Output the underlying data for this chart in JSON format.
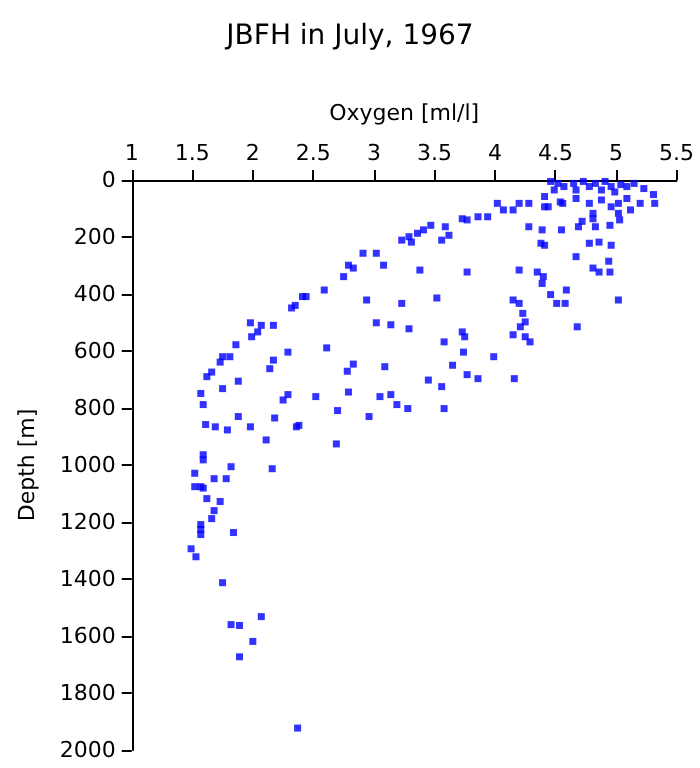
{
  "chart_data": {
    "type": "scatter",
    "title": "JBFH in July, 1967",
    "xlabel": "Oxygen [ml/l]",
    "ylabel": "Depth [m]",
    "xlim": [
      1,
      5.5
    ],
    "xticks": [
      1,
      1.5,
      2,
      2.5,
      3,
      3.5,
      4,
      4.5,
      5,
      5.5
    ],
    "ylim": [
      2000,
      0
    ],
    "yticks": [
      0,
      200,
      400,
      600,
      800,
      1000,
      1200,
      1400,
      1600,
      1800,
      2000
    ],
    "grid": false,
    "marker": "square",
    "series": [
      {
        "color": "#0000ff",
        "x": [
          4.46,
          4.52,
          4.57,
          4.65,
          4.73,
          4.78,
          4.83,
          4.91,
          4.96,
          5.04,
          5.09,
          5.15,
          4.49,
          4.67,
          4.88,
          4.99,
          5.23,
          5.31,
          5.32,
          5.2,
          5.09,
          5.12,
          5.02,
          4.88,
          4.78,
          4.67,
          4.56,
          4.41,
          4.44,
          4.28,
          4.2,
          4.15,
          4.07,
          4.02,
          3.94,
          3.86,
          3.77,
          3.73,
          3.59,
          3.47,
          3.41,
          3.36,
          3.29,
          3.23,
          3.31,
          3.56,
          3.62,
          2.91,
          3.02,
          3.08,
          2.79,
          2.83,
          2.75,
          2.59,
          2.44,
          2.41,
          2.35,
          2.32,
          3.77,
          3.38,
          2.94,
          3.23,
          3.52,
          4.15,
          4.2,
          4.23,
          4.2,
          4.35,
          4.4,
          4.39,
          4.46,
          4.51,
          4.58,
          4.59,
          5.02,
          4.28,
          4.39,
          4.55,
          4.69,
          4.72,
          4.83,
          4.95,
          4.38,
          4.41,
          4.78,
          4.86,
          4.96,
          4.67,
          4.81,
          4.86,
          4.95,
          4.94,
          4.41,
          4.54,
          4.81,
          4.81,
          4.96,
          5.02,
          5.03,
          1.98,
          2.07,
          2.17,
          2.04,
          1.99,
          1.86,
          2.29,
          2.61,
          2.14,
          2.17,
          1.81,
          1.75,
          1.73,
          1.66,
          1.62,
          1.75,
          1.88,
          1.57,
          1.59,
          2.29,
          2.25,
          2.18,
          2.52,
          2.79,
          2.78,
          2.83,
          3.09,
          3.02,
          3.14,
          3.29,
          3.58,
          3.73,
          3.75,
          3.74,
          3.65,
          3.77,
          3.86,
          3.99,
          3.45,
          3.56,
          3.58,
          3.28,
          3.19,
          3.14,
          3.05,
          2.96,
          2.7,
          2.69,
          2.11,
          2.16,
          1.88,
          1.98,
          1.79,
          1.69,
          1.61,
          1.59,
          1.59,
          1.82,
          1.78,
          1.68,
          1.52,
          1.52,
          1.57,
          1.59,
          1.62,
          1.73,
          1.68,
          1.66,
          1.57,
          1.57,
          1.57,
          1.84,
          1.49,
          1.53,
          2.36,
          2.38,
          4.15,
          4.21,
          4.25,
          4.25,
          4.29,
          4.16,
          4.68,
          1.75,
          1.82,
          1.89,
          2.07,
          2.0,
          1.89,
          2.37
        ],
        "values": [
          5,
          12,
          23,
          12,
          5,
          23,
          12,
          5,
          23,
          16,
          23,
          12,
          35,
          35,
          35,
          42,
          30,
          51,
          82,
          82,
          65,
          105,
          82,
          70,
          82,
          65,
          82,
          58,
          94,
          82,
          82,
          105,
          105,
          82,
          129,
          129,
          140,
          136,
          164,
          159,
          175,
          187,
          199,
          211,
          218,
          211,
          194,
          257,
          257,
          299,
          299,
          309,
          339,
          386,
          409,
          409,
          440,
          449,
          323,
          316,
          421,
          433,
          414,
          421,
          433,
          468,
          316,
          323,
          339,
          363,
          402,
          433,
          433,
          386,
          421,
          164,
          175,
          175,
          164,
          145,
          164,
          159,
          222,
          229,
          222,
          218,
          229,
          269,
          309,
          323,
          323,
          285,
          94,
          77,
          117,
          136,
          94,
          117,
          140,
          501,
          510,
          510,
          533,
          550,
          578,
          604,
          589,
          662,
          632,
          620,
          620,
          639,
          674,
          690,
          732,
          706,
          749,
          788,
          753,
          772,
          835,
          760,
          744,
          671,
          646,
          655,
          501,
          508,
          522,
          568,
          533,
          550,
          604,
          650,
          683,
          697,
          620,
          702,
          725,
          802,
          802,
          788,
          753,
          760,
          830,
          809,
          926,
          912,
          1013,
          830,
          866,
          877,
          866,
          858,
          964,
          982,
          1006,
          1048,
          1048,
          1029,
          1076,
          1076,
          1081,
          1118,
          1128,
          1160,
          1188,
          1209,
          1226,
          1244,
          1237,
          1294,
          1322,
          866,
          861,
          543,
          515,
          498,
          550,
          568,
          697,
          515,
          1413,
          1560,
          1563,
          1532,
          1619,
          1673,
          1923
        ]
      }
    ]
  }
}
